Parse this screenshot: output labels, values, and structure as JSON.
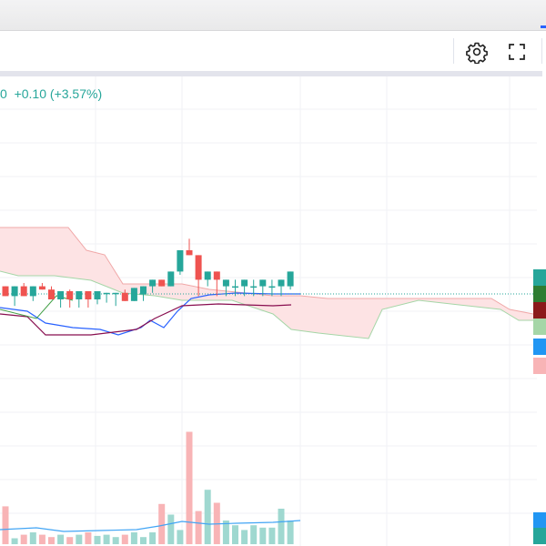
{
  "legend": {
    "last_digit": "0",
    "change": "+0.10",
    "change_pct": "(+3.57%)"
  },
  "toolbar": {
    "settings_icon": "gear-icon",
    "fullscreen_icon": "fullscreen-icon"
  },
  "colors": {
    "up": "#26a69a",
    "down": "#ef5350",
    "cloud_bear_fill": "#fde3e4",
    "cloud_edge_red": "#f0a8a8",
    "cloud_edge_green": "#a5d6a7",
    "conversion_line": "#2962ff",
    "base_line": "#880e4f",
    "lagging_line": "#43a047",
    "volume_up": "#9fd8d0",
    "volume_down": "#f8b4b6",
    "volume_ma": "#42a5f5"
  },
  "chart_data": {
    "type": "candlestick",
    "indicators": [
      "Ichimoku Cloud",
      "Volume"
    ],
    "last_change": 0.1,
    "last_change_pct": 3.57,
    "relative_ohlc": [
      {
        "o": 0.47,
        "h": 0.47,
        "l": 0.53,
        "c": 0.53
      },
      {
        "o": 0.53,
        "h": 0.47,
        "l": 0.59,
        "c": 0.47
      },
      {
        "o": 0.47,
        "h": 0.45,
        "l": 0.53,
        "c": 0.53
      },
      {
        "o": 0.53,
        "h": 0.47,
        "l": 0.56,
        "c": 0.47
      },
      {
        "o": 0.47,
        "h": 0.45,
        "l": 0.49,
        "c": 0.49
      },
      {
        "o": 0.49,
        "h": 0.47,
        "l": 0.55,
        "c": 0.55
      },
      {
        "o": 0.55,
        "h": 0.5,
        "l": 0.6,
        "c": 0.5
      },
      {
        "o": 0.5,
        "h": 0.49,
        "l": 0.6,
        "c": 0.55
      },
      {
        "o": 0.55,
        "h": 0.5,
        "l": 0.6,
        "c": 0.5
      },
      {
        "o": 0.5,
        "h": 0.5,
        "l": 0.6,
        "c": 0.55
      },
      {
        "o": 0.55,
        "h": 0.5,
        "l": 0.58,
        "c": 0.5
      },
      {
        "o": 0.51,
        "h": 0.51,
        "l": 0.57,
        "c": 0.51
      },
      {
        "o": 0.51,
        "h": 0.51,
        "l": 0.59,
        "c": 0.51
      },
      {
        "o": 0.51,
        "h": 0.49,
        "l": 0.56,
        "c": 0.56
      },
      {
        "o": 0.56,
        "h": 0.48,
        "l": 0.56,
        "c": 0.48
      },
      {
        "o": 0.52,
        "h": 0.47,
        "l": 0.56,
        "c": 0.47
      },
      {
        "o": 0.47,
        "h": 0.43,
        "l": 0.51,
        "c": 0.43
      },
      {
        "o": 0.43,
        "h": 0.43,
        "l": 0.47,
        "c": 0.47
      },
      {
        "o": 0.47,
        "h": 0.38,
        "l": 0.47,
        "c": 0.38
      },
      {
        "o": 0.38,
        "h": 0.25,
        "l": 0.4,
        "c": 0.25
      },
      {
        "o": 0.25,
        "h": 0.18,
        "l": 0.28,
        "c": 0.28
      },
      {
        "o": 0.28,
        "h": 0.28,
        "l": 0.53,
        "c": 0.43
      },
      {
        "o": 0.43,
        "h": 0.38,
        "l": 0.47,
        "c": 0.38
      },
      {
        "o": 0.38,
        "h": 0.38,
        "l": 0.53,
        "c": 0.43
      },
      {
        "o": 0.47,
        "h": 0.43,
        "l": 0.53,
        "c": 0.43
      },
      {
        "o": 0.47,
        "h": 0.43,
        "l": 0.53,
        "c": 0.47
      },
      {
        "o": 0.47,
        "h": 0.43,
        "l": 0.53,
        "c": 0.43
      },
      {
        "o": 0.47,
        "h": 0.43,
        "l": 0.53,
        "c": 0.47
      },
      {
        "o": 0.47,
        "h": 0.43,
        "l": 0.53,
        "c": 0.43
      },
      {
        "o": 0.47,
        "h": 0.43,
        "l": 0.53,
        "c": 0.47
      },
      {
        "o": 0.47,
        "h": 0.43,
        "l": 0.53,
        "c": 0.43
      },
      {
        "o": 0.47,
        "h": 0.38,
        "l": 0.49,
        "c": 0.38
      }
    ],
    "volume_relative": [
      0.32,
      0.05,
      0.08,
      0.1,
      0.08,
      0.06,
      0.08,
      0.06,
      0.08,
      0.1,
      0.07,
      0.08,
      0.06,
      0.08,
      0.1,
      0.06,
      0.1,
      0.34,
      0.25,
      0.12,
      0.95,
      0.28,
      0.46,
      0.35,
      0.2,
      0.16,
      0.12,
      0.16,
      0.14,
      0.14,
      0.3,
      0.2
    ]
  }
}
